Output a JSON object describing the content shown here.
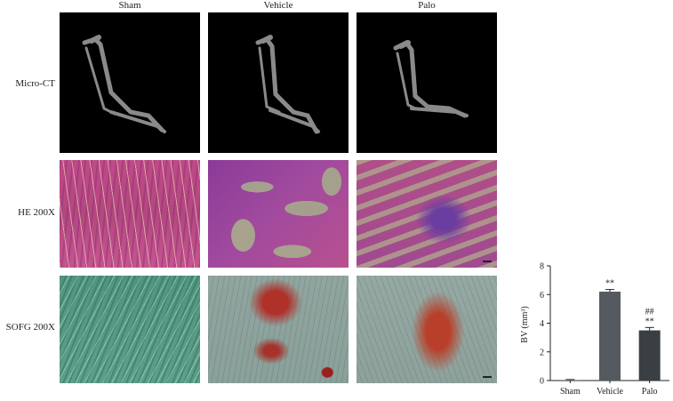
{
  "columns": [
    "Sham",
    "Vehicle",
    "Palo"
  ],
  "rows": [
    "Micro-CT",
    "HE 200X",
    "SOFG 200X"
  ],
  "colors": {
    "sham_bar": "#888888",
    "vehicle_bar": "#555a60",
    "palo_bar": "#3a3f44"
  },
  "chart_data": {
    "type": "bar",
    "categories": [
      "Sham",
      "Vehicle",
      "Palo"
    ],
    "values": [
      0.05,
      6.2,
      3.5
    ],
    "errors": [
      0.02,
      0.15,
      0.2
    ],
    "ylabel": "BV (mm³)",
    "ylim": [
      0,
      8
    ],
    "yticks": [
      0,
      2,
      4,
      6,
      8
    ],
    "annotations": [
      {
        "category": "Vehicle",
        "text": "**"
      },
      {
        "category": "Palo",
        "text": "##"
      },
      {
        "category": "Palo",
        "text": "**"
      }
    ]
  }
}
